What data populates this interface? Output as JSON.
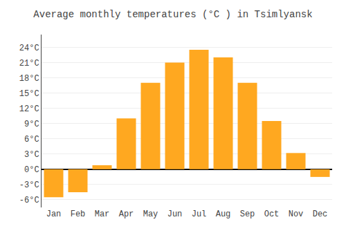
{
  "chart_data": {
    "type": "bar",
    "title": "Average monthly temperatures (°C ) in Tsimlyansk",
    "categories": [
      "Jan",
      "Feb",
      "Mar",
      "Apr",
      "May",
      "Jun",
      "Jul",
      "Aug",
      "Sep",
      "Oct",
      "Nov",
      "Dec"
    ],
    "values": [
      -5.5,
      -4.5,
      0.8,
      10.0,
      17.0,
      21.0,
      23.5,
      22.0,
      17.0,
      9.5,
      3.2,
      -1.5
    ],
    "color": "#FFA820",
    "ylim": [
      -7.5,
      26.5
    ],
    "yticks": [
      {
        "value": -6,
        "label": "-6°C"
      },
      {
        "value": -3,
        "label": "-3°C"
      },
      {
        "value": 0,
        "label": "0°C"
      },
      {
        "value": 3,
        "label": "3°C"
      },
      {
        "value": 6,
        "label": "6°C"
      },
      {
        "value": 9,
        "label": "9°C"
      },
      {
        "value": 12,
        "label": "12°C"
      },
      {
        "value": 15,
        "label": "15°C"
      },
      {
        "value": 18,
        "label": "18°C"
      },
      {
        "value": 21,
        "label": "21°C"
      },
      {
        "value": 24,
        "label": "24°C"
      }
    ],
    "grid": true
  }
}
